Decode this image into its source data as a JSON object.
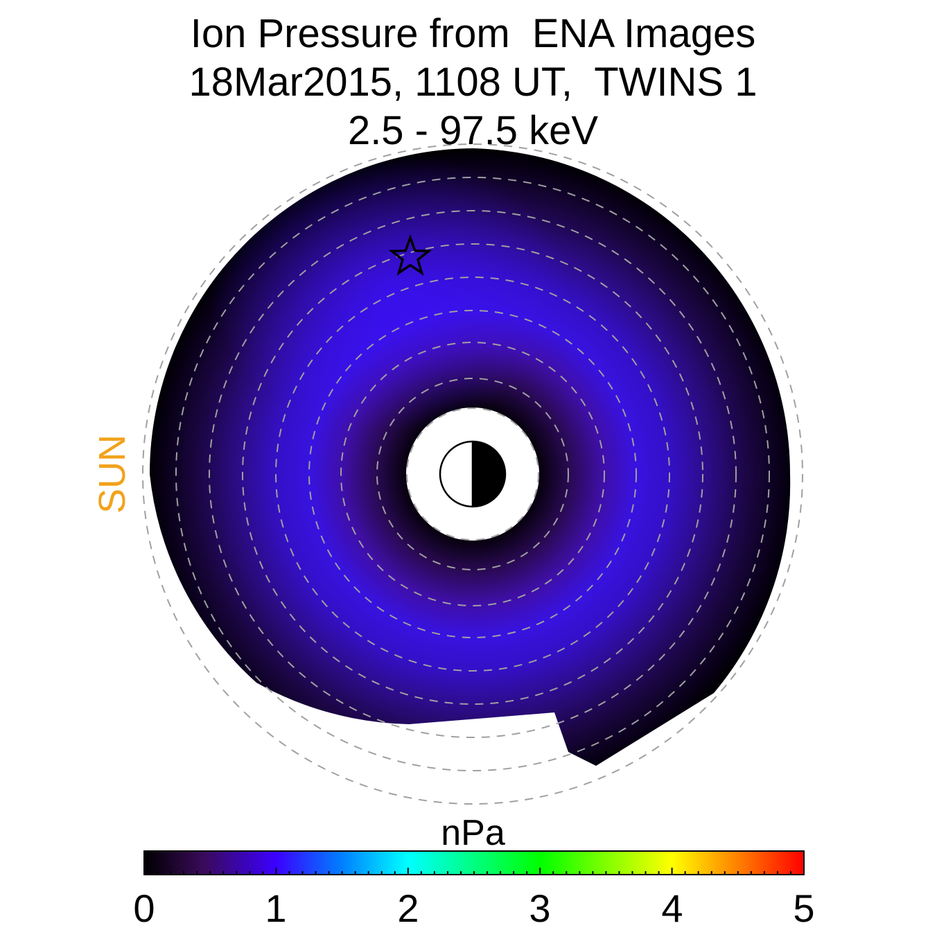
{
  "title_lines": [
    "Ion Pressure from  ENA Images",
    "18Mar2015, 1108 UT,  TWINS 1",
    "2.5 - 97.5 keV"
  ],
  "sun_label": "SUN",
  "colors": {
    "sun_label": "#f2a21b",
    "background": "#ffffff",
    "guide_circles": "#a0a0a0"
  },
  "chart_data": {
    "type": "heatmap",
    "projection": "polar, equatorial plane, Sun to the left",
    "value_max_observed": 1.15,
    "peak_location": "upper-left ring near the star marker",
    "colorbar": {
      "label": "nPa",
      "range": [
        0,
        5
      ],
      "tick_labels": [
        "0",
        "1",
        "2",
        "3",
        "4",
        "5"
      ],
      "colormap": [
        "#000000",
        "#3a0a5a",
        "#3b00ff",
        "#0080ff",
        "#00ffff",
        "#00ff80",
        "#00ff00",
        "#80ff00",
        "#ffff00",
        "#ff8000",
        "#ff0000"
      ]
    },
    "markers": [
      "star",
      "earth-half-shaded"
    ]
  }
}
